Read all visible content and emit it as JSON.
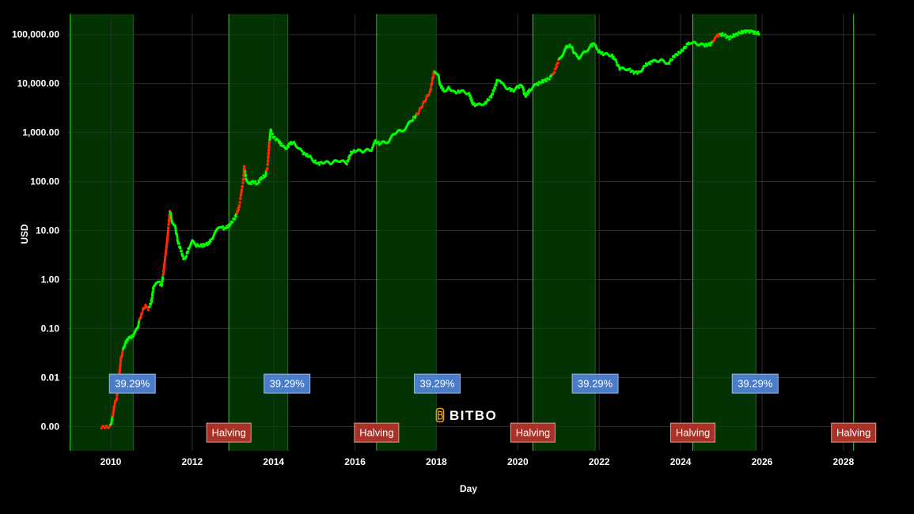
{
  "colors": {
    "background": "#000000",
    "grid": "#2e2e2e",
    "tick_text": "#ffffff",
    "band_fill": "#033303",
    "band_edge": "#1a6e1a",
    "halving_line": "#2bd42b",
    "price_up": "#00ff00",
    "price_down": "#ff2a00",
    "halving_label_bg": "#a83228",
    "halving_label_border": "#e0a090",
    "pct_label_bg": "#4a7cc8",
    "pct_label_border": "#9bb9ee"
  },
  "watermark": {
    "text": "BITBO",
    "icon": "bitcoin-b-icon"
  },
  "chart_data": {
    "type": "scatter",
    "xlabel": "Day",
    "ylabel": "USD",
    "xlim": [
      2008.95,
      2028.8
    ],
    "x_ticks": [
      2010,
      2012,
      2014,
      2016,
      2018,
      2020,
      2022,
      2024,
      2026,
      2028
    ],
    "yscale": "log",
    "ylim": [
      0.00032,
      260000
    ],
    "y_ticks": [
      {
        "value": 0.001,
        "label": "0.00"
      },
      {
        "value": 0.01,
        "label": "0.01"
      },
      {
        "value": 0.1,
        "label": "0.10"
      },
      {
        "value": 1,
        "label": "1.00"
      },
      {
        "value": 10,
        "label": "10.00"
      },
      {
        "value": 100,
        "label": "100.00"
      },
      {
        "value": 1000,
        "label": "1,000.00"
      },
      {
        "value": 10000,
        "label": "10,000.00"
      },
      {
        "value": 100000,
        "label": "100,000.00"
      }
    ],
    "grid": true,
    "bull_bands": [
      {
        "start": 2009.0,
        "end": 2010.55
      },
      {
        "start": 2012.9,
        "end": 2014.35
      },
      {
        "start": 2016.55,
        "end": 2018.0
      },
      {
        "start": 2020.37,
        "end": 2021.9
      },
      {
        "start": 2024.3,
        "end": 2025.85
      }
    ],
    "halving_lines": [
      2009.0,
      2012.9,
      2016.53,
      2020.37,
      2024.3,
      2028.25
    ],
    "halving_labels": [
      {
        "x": 2012.9,
        "text": "Halving"
      },
      {
        "x": 2016.53,
        "text": "Halving"
      },
      {
        "x": 2020.37,
        "text": "Halving"
      },
      {
        "x": 2024.3,
        "text": "Halving"
      },
      {
        "x": 2028.25,
        "text": "Halving"
      }
    ],
    "pct_labels": [
      {
        "x": 2010.53,
        "text": "39.29%"
      },
      {
        "x": 2014.33,
        "text": "39.29%"
      },
      {
        "x": 2018.02,
        "text": "39.29%"
      },
      {
        "x": 2021.9,
        "text": "39.29%"
      },
      {
        "x": 2025.83,
        "text": "39.29%"
      }
    ],
    "series": [
      {
        "points": [
          [
            2009.77,
            0.00098
          ],
          [
            2009.98,
            0.00098
          ],
          [
            2010.05,
            0.0016
          ],
          [
            2010.08,
            0.0025
          ],
          [
            2010.15,
            0.004
          ],
          [
            2010.2,
            0.009
          ],
          [
            2010.25,
            0.025
          ],
          [
            2010.35,
            0.05
          ],
          [
            2010.45,
            0.065
          ],
          [
            2010.55,
            0.07
          ],
          [
            2010.65,
            0.1
          ],
          [
            2010.75,
            0.2
          ],
          [
            2010.85,
            0.3
          ],
          [
            2010.92,
            0.25
          ],
          [
            2011.0,
            0.35
          ],
          [
            2011.05,
            0.7
          ],
          [
            2011.12,
            0.9
          ],
          [
            2011.2,
            0.85
          ],
          [
            2011.25,
            0.75
          ],
          [
            2011.3,
            1.5
          ],
          [
            2011.35,
            3.5
          ],
          [
            2011.4,
            8
          ],
          [
            2011.45,
            25
          ],
          [
            2011.5,
            16
          ],
          [
            2011.58,
            12
          ],
          [
            2011.65,
            6
          ],
          [
            2011.72,
            4
          ],
          [
            2011.8,
            2.5
          ],
          [
            2011.85,
            3
          ],
          [
            2011.92,
            4.5
          ],
          [
            2012.0,
            6
          ],
          [
            2012.1,
            5
          ],
          [
            2012.25,
            4.9
          ],
          [
            2012.4,
            5.5
          ],
          [
            2012.5,
            7
          ],
          [
            2012.6,
            10
          ],
          [
            2012.7,
            12
          ],
          [
            2012.8,
            11
          ],
          [
            2012.92,
            13
          ],
          [
            2013.05,
            18
          ],
          [
            2013.15,
            30
          ],
          [
            2013.25,
            100
          ],
          [
            2013.28,
            200
          ],
          [
            2013.32,
            120
          ],
          [
            2013.4,
            90
          ],
          [
            2013.5,
            100
          ],
          [
            2013.6,
            90
          ],
          [
            2013.7,
            120
          ],
          [
            2013.8,
            130
          ],
          [
            2013.85,
            200
          ],
          [
            2013.9,
            700
          ],
          [
            2013.93,
            1100
          ],
          [
            2014.0,
            800
          ],
          [
            2014.1,
            700
          ],
          [
            2014.2,
            550
          ],
          [
            2014.3,
            450
          ],
          [
            2014.4,
            600
          ],
          [
            2014.5,
            620
          ],
          [
            2014.6,
            500
          ],
          [
            2014.7,
            400
          ],
          [
            2014.8,
            350
          ],
          [
            2014.9,
            320
          ],
          [
            2015.0,
            260
          ],
          [
            2015.1,
            230
          ],
          [
            2015.2,
            250
          ],
          [
            2015.4,
            240
          ],
          [
            2015.6,
            270
          ],
          [
            2015.8,
            240
          ],
          [
            2015.9,
            380
          ],
          [
            2016.0,
            430
          ],
          [
            2016.2,
            420
          ],
          [
            2016.4,
            450
          ],
          [
            2016.5,
            650
          ],
          [
            2016.6,
            600
          ],
          [
            2016.8,
            650
          ],
          [
            2017.0,
            1000
          ],
          [
            2017.2,
            1150
          ],
          [
            2017.4,
            1800
          ],
          [
            2017.55,
            2500
          ],
          [
            2017.7,
            4200
          ],
          [
            2017.85,
            7000
          ],
          [
            2017.95,
            19000
          ],
          [
            2018.05,
            14000
          ],
          [
            2018.1,
            9000
          ],
          [
            2018.2,
            7000
          ],
          [
            2018.3,
            8500
          ],
          [
            2018.45,
            6500
          ],
          [
            2018.6,
            7000
          ],
          [
            2018.8,
            6300
          ],
          [
            2018.9,
            3800
          ],
          [
            2019.0,
            3600
          ],
          [
            2019.2,
            4000
          ],
          [
            2019.35,
            5500
          ],
          [
            2019.45,
            9000
          ],
          [
            2019.5,
            12000
          ],
          [
            2019.6,
            10000
          ],
          [
            2019.75,
            8000
          ],
          [
            2019.9,
            7200
          ],
          [
            2020.0,
            8500
          ],
          [
            2020.1,
            9500
          ],
          [
            2020.18,
            5500
          ],
          [
            2020.3,
            7500
          ],
          [
            2020.45,
            9500
          ],
          [
            2020.6,
            11000
          ],
          [
            2020.8,
            13000
          ],
          [
            2020.9,
            18000
          ],
          [
            2021.0,
            29000
          ],
          [
            2021.1,
            40000
          ],
          [
            2021.2,
            55000
          ],
          [
            2021.3,
            60000
          ],
          [
            2021.4,
            40000
          ],
          [
            2021.5,
            34000
          ],
          [
            2021.6,
            40000
          ],
          [
            2021.7,
            48000
          ],
          [
            2021.8,
            60000
          ],
          [
            2021.87,
            65000
          ],
          [
            2021.95,
            48000
          ],
          [
            2022.1,
            40000
          ],
          [
            2022.3,
            38000
          ],
          [
            2022.4,
            30000
          ],
          [
            2022.5,
            20000
          ],
          [
            2022.7,
            20000
          ],
          [
            2022.85,
            17000
          ],
          [
            2023.0,
            17000
          ],
          [
            2023.1,
            23000
          ],
          [
            2023.3,
            28000
          ],
          [
            2023.5,
            30000
          ],
          [
            2023.7,
            26000
          ],
          [
            2023.85,
            37000
          ],
          [
            2024.0,
            44000
          ],
          [
            2024.15,
            60000
          ],
          [
            2024.2,
            70000
          ],
          [
            2024.4,
            65000
          ],
          [
            2024.6,
            60000
          ],
          [
            2024.75,
            65000
          ],
          [
            2024.85,
            90000
          ],
          [
            2024.95,
            100000
          ],
          [
            2025.05,
            100000
          ],
          [
            2025.2,
            85000
          ],
          [
            2025.3,
            95000
          ],
          [
            2025.45,
            108000
          ],
          [
            2025.6,
            118000
          ],
          [
            2025.75,
            115000
          ],
          [
            2025.85,
            108000
          ],
          [
            2025.95,
            105000
          ]
        ],
        "down_segments": [
          [
            2009.77,
            2009.99
          ],
          [
            2010.05,
            2010.3
          ],
          [
            2010.7,
            2010.95
          ],
          [
            2011.28,
            2011.46
          ],
          [
            2013.1,
            2013.3
          ],
          [
            2013.82,
            2013.9
          ],
          [
            2017.5,
            2017.95
          ],
          [
            2020.85,
            2021.0
          ],
          [
            2024.8,
            2024.95
          ]
        ]
      }
    ]
  }
}
